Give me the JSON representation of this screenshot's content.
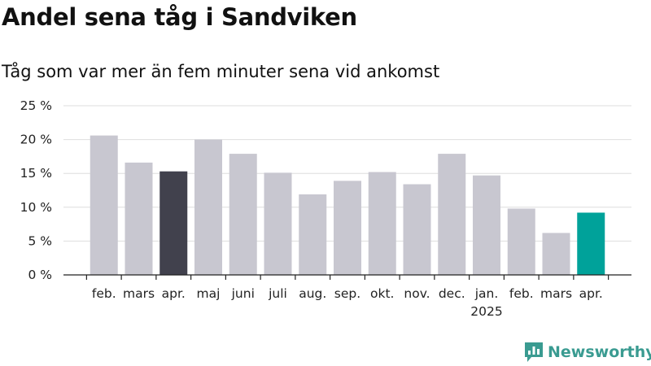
{
  "chart_data": {
    "type": "bar",
    "title": "Andel sena tåg i Sandviken",
    "subtitle": "Tåg som var mer än fem minuter sena vid ankomst",
    "categories": [
      "feb.",
      "mars",
      "apr.",
      "maj",
      "juni",
      "juli",
      "aug.",
      "sep.",
      "okt.",
      "nov.",
      "dec.",
      "jan.",
      "feb.",
      "mars",
      "apr."
    ],
    "year_labels": [
      {
        "index": 11,
        "label": "2025"
      }
    ],
    "values": [
      20.6,
      16.6,
      15.3,
      20.0,
      17.9,
      15.1,
      11.9,
      13.9,
      15.2,
      13.4,
      17.9,
      14.7,
      9.8,
      6.2,
      9.2
    ],
    "highlight": {
      "2": "#41414d",
      "14": "#00a29a"
    },
    "bar_color": "#c8c7d0",
    "yticks": [
      0,
      5,
      10,
      15,
      20,
      25
    ],
    "ytick_labels": [
      "0 %",
      "5 %",
      "10 %",
      "15 %",
      "20 %",
      "25 %"
    ],
    "ylim": [
      0,
      25
    ],
    "grid": true,
    "legend": "none"
  },
  "brand": {
    "name": "Newsworthy",
    "icon": "bar-chart-logo-icon",
    "color": "#3a9b91"
  }
}
